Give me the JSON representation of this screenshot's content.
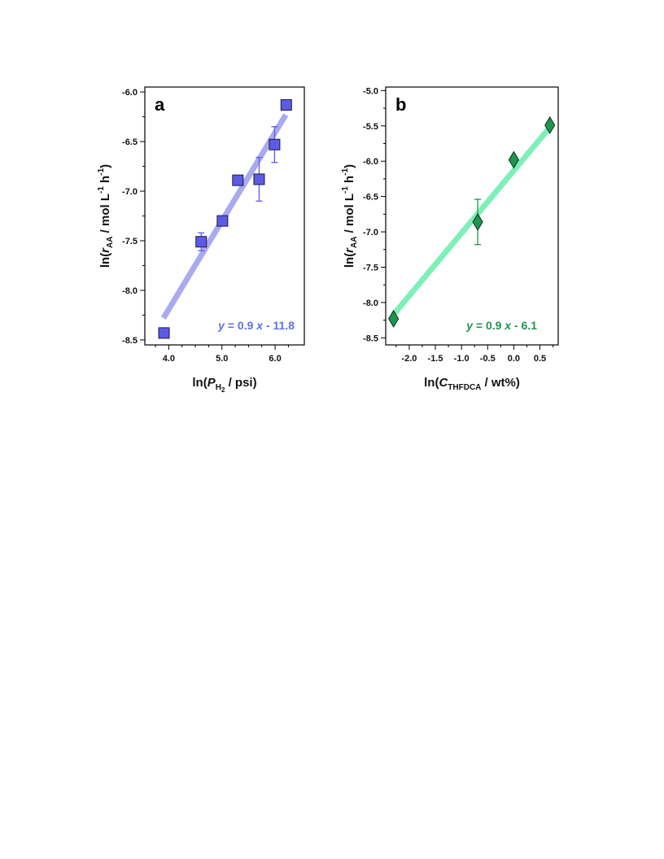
{
  "chart_data": [
    {
      "type": "scatter",
      "panel_label": "a",
      "xlabel": {
        "pre": "ln(",
        "var": "P",
        "sub": "H",
        "subsub": "2",
        "post": " / psi)"
      },
      "ylabel": {
        "pre": "ln(",
        "var": "r",
        "sub": "AA",
        "post": " / mol L",
        "exp1": "-1",
        "mid": " h",
        "exp2": "-1",
        "end": ")"
      },
      "xlim": [
        3.55,
        6.55
      ],
      "ylim": [
        -8.55,
        -5.95
      ],
      "xticks": [
        {
          "v": 4.0,
          "label": "4.0"
        },
        {
          "v": 5.0,
          "label": "5.0"
        },
        {
          "v": 6.0,
          "label": "6.0"
        }
      ],
      "xminor": [
        3.75,
        4.25,
        4.5,
        4.75,
        5.25,
        5.5,
        5.75,
        6.25
      ],
      "yticks": [
        {
          "v": -6.0,
          "label": "-6.0"
        },
        {
          "v": -6.5,
          "label": "-6.5"
        },
        {
          "v": -7.0,
          "label": "-7.0"
        },
        {
          "v": -7.5,
          "label": "-7.5"
        },
        {
          "v": -8.0,
          "label": "-8.0"
        },
        {
          "v": -8.5,
          "label": "-8.5"
        }
      ],
      "yminor": [
        -6.25,
        -6.75,
        -7.25,
        -7.75,
        -8.25
      ],
      "marker": "square",
      "marker_color": "#5b5be6",
      "errorbar_color": "#5b5be6",
      "fit_color": "#a9aaf0",
      "fit_text_color": "#5b72e6",
      "fit_equation": {
        "y": "y",
        "eq1": " = 0.9 ",
        "x": "x",
        "eq2": " - 11.8"
      },
      "fit_line": {
        "x": [
          3.9,
          6.2
        ],
        "y": [
          -8.28,
          -6.23
        ]
      },
      "points": [
        {
          "x": 3.91,
          "y": -8.43,
          "err": 0
        },
        {
          "x": 4.61,
          "y": -7.51,
          "err": 0.09
        },
        {
          "x": 5.01,
          "y": -7.3,
          "err": 0
        },
        {
          "x": 5.3,
          "y": -6.89,
          "err": 0
        },
        {
          "x": 5.7,
          "y": -6.88,
          "err": 0.22
        },
        {
          "x": 5.99,
          "y": -6.53,
          "err": 0.18
        },
        {
          "x": 6.21,
          "y": -6.13,
          "err": 0
        }
      ]
    },
    {
      "type": "scatter",
      "panel_label": "b",
      "xlabel": {
        "pre": "ln(",
        "var": "C",
        "sub": "THFDCA",
        "post": " / wt%)"
      },
      "ylabel": {
        "pre": "ln(",
        "var": "r",
        "sub": "AA",
        "post": " / mol L",
        "exp1": "-1",
        "mid": " h",
        "exp2": "-1",
        "end": ")"
      },
      "xlim": [
        -2.45,
        0.85
      ],
      "ylim": [
        -8.6,
        -4.95
      ],
      "xticks": [
        {
          "v": -2.0,
          "label": "-2.0"
        },
        {
          "v": -1.5,
          "label": "-1.5"
        },
        {
          "v": -1.0,
          "label": "-1.0"
        },
        {
          "v": -0.5,
          "label": "-0.5"
        },
        {
          "v": 0.0,
          "label": "0.0"
        },
        {
          "v": 0.5,
          "label": "0.5"
        }
      ],
      "xminor": [
        -2.25,
        -1.75,
        -1.25,
        -0.75,
        -0.25,
        0.25,
        0.75
      ],
      "yticks": [
        {
          "v": -5.0,
          "label": "-5.0"
        },
        {
          "v": -5.5,
          "label": "-5.5"
        },
        {
          "v": -6.0,
          "label": "-6.0"
        },
        {
          "v": -6.5,
          "label": "-6.5"
        },
        {
          "v": -7.0,
          "label": "-7.0"
        },
        {
          "v": -7.5,
          "label": "-7.5"
        },
        {
          "v": -8.0,
          "label": "-8.0"
        },
        {
          "v": -8.5,
          "label": "-8.5"
        }
      ],
      "yminor": [
        -5.25,
        -5.75,
        -6.25,
        -6.75,
        -7.25,
        -7.75,
        -8.25
      ],
      "marker": "diamond",
      "marker_color": "#1e9650",
      "errorbar_color": "#1e9650",
      "fit_color": "#7df0b8",
      "fit_text_color": "#1e9650",
      "fit_equation": {
        "y": "y",
        "eq1": " = 0.9 ",
        "x": "x",
        "eq2": " - 6.1"
      },
      "fit_line": {
        "x": [
          -2.3,
          0.69
        ],
        "y": [
          -8.17,
          -5.52
        ]
      },
      "points": [
        {
          "x": -2.3,
          "y": -8.23,
          "err": 0
        },
        {
          "x": -0.69,
          "y": -6.86,
          "err": 0.32
        },
        {
          "x": 0.0,
          "y": -5.98,
          "err": 0
        },
        {
          "x": 0.69,
          "y": -5.49,
          "err": 0
        }
      ]
    }
  ]
}
